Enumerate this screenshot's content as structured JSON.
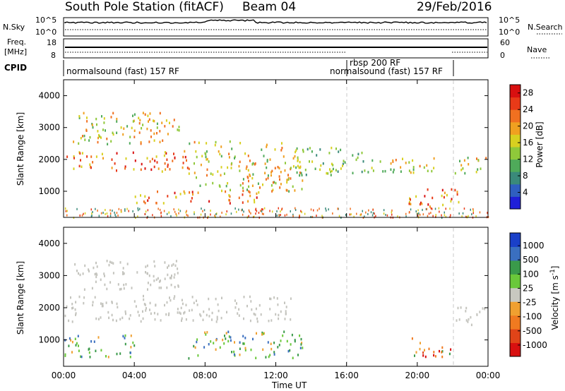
{
  "header": {
    "station": "South Pole Station (fitACF)",
    "beam": "Beam 04",
    "date": "29/Feb/2016"
  },
  "noise_panel": {
    "left_label": "N.Sky",
    "right_label": "N.Search",
    "left_ticks": [
      "10^5",
      "10^0"
    ],
    "right_ticks": [
      "10^5",
      "10^0"
    ]
  },
  "freq_panel": {
    "left_label_line1": "Freq.",
    "left_label_line2": "[MHz]",
    "left_ticks": [
      "18",
      "8"
    ],
    "right_label": "Nave",
    "right_ticks": [
      "60",
      "0"
    ]
  },
  "cpid_panel": {
    "label": "CPID",
    "segments": [
      {
        "text": "normalsound (fast) 157 RF",
        "start_hour": 0
      },
      {
        "text": "rbsp 200 RF",
        "start_hour": 16.0
      },
      {
        "text": "normalsound (fast) 157 RF",
        "start_hour": 16.0
      }
    ],
    "boundaries_hours": [
      16.0,
      22.0
    ]
  },
  "x_axis": {
    "label": "Time UT",
    "ticks": [
      "00:00",
      "04:00",
      "08:00",
      "12:00",
      "16:00",
      "20:00",
      "00:00"
    ]
  },
  "colors": {
    "power_scale": [
      "#1f1fd8",
      "#2f5fc0",
      "#3a8a7a",
      "#4faa5a",
      "#8fc83a",
      "#d8d020",
      "#f0a020",
      "#f07020",
      "#e83a18",
      "#d81010"
    ],
    "velocity_scale": [
      "#1a40c8",
      "#3a6fc0",
      "#3a9a4a",
      "#6ac83a",
      "#c8c8c0",
      "#f0a030",
      "#f07a20",
      "#e04418",
      "#d81010"
    ],
    "ground_scatter": "#c4c4be"
  },
  "chart_data": [
    {
      "type": "heatmap",
      "title": "",
      "xlabel": "Time UT",
      "ylabel": "Slant Range [km]",
      "xlim_hours": [
        0,
        24
      ],
      "ylim": [
        180,
        4500
      ],
      "yticks": [
        1000,
        2000,
        3000,
        4000
      ],
      "colorbar": {
        "label": "Power [dB]",
        "ticks": [
          "4",
          "8",
          "12",
          "16",
          "20",
          "24",
          "28"
        ],
        "range": [
          0,
          30
        ]
      },
      "echo_regions": [
        {
          "t": [
            0.0,
            7.0
          ],
          "range": [
            1650,
            2300
          ],
          "level": "high"
        },
        {
          "t": [
            4.0,
            11.0
          ],
          "range": [
            650,
            1050
          ],
          "level": "high"
        },
        {
          "t": [
            0.5,
            6.5
          ],
          "range": [
            2500,
            3500
          ],
          "level": "medium"
        },
        {
          "t": [
            7.0,
            13.5
          ],
          "range": [
            1000,
            2600
          ],
          "level": "medium"
        },
        {
          "t": [
            13.0,
            17.0
          ],
          "range": [
            1500,
            2400
          ],
          "level": "low"
        },
        {
          "t": [
            17.0,
            21.0
          ],
          "range": [
            1600,
            2100
          ],
          "level": "medium"
        },
        {
          "t": [
            19.5,
            22.5
          ],
          "range": [
            550,
            1100
          ],
          "level": "high"
        },
        {
          "t": [
            22.0,
            24.0
          ],
          "range": [
            1600,
            2100
          ],
          "level": "medium"
        }
      ]
    },
    {
      "type": "heatmap",
      "title": "",
      "xlabel": "Time UT",
      "ylabel": "Slant Range [km]",
      "xlim_hours": [
        0,
        24
      ],
      "ylim": [
        180,
        4500
      ],
      "yticks": [
        1000,
        2000,
        3000,
        4000
      ],
      "colorbar": {
        "label": "Velocity [m s^-1]",
        "ticks": [
          "1000",
          "500",
          "100",
          "25",
          "-25",
          "-100",
          "-500",
          "-1000"
        ],
        "range": [
          -1000,
          1000
        ]
      },
      "echo_regions": [
        {
          "t": [
            0.0,
            13.0
          ],
          "range": [
            1600,
            2400
          ],
          "kind": "ground_scatter"
        },
        {
          "t": [
            0.5,
            6.5
          ],
          "range": [
            2600,
            3500
          ],
          "kind": "ground_scatter"
        },
        {
          "t": [
            0.0,
            4.0
          ],
          "range": [
            500,
            1200
          ],
          "kind": "positive"
        },
        {
          "t": [
            7.0,
            13.5
          ],
          "range": [
            450,
            1300
          ],
          "kind": "positive"
        },
        {
          "t": [
            19.5,
            22.0
          ],
          "range": [
            450,
            1100
          ],
          "kind": "negative"
        },
        {
          "t": [
            22.0,
            24.0
          ],
          "range": [
            1500,
            2100
          ],
          "kind": "ground_scatter"
        }
      ]
    }
  ]
}
